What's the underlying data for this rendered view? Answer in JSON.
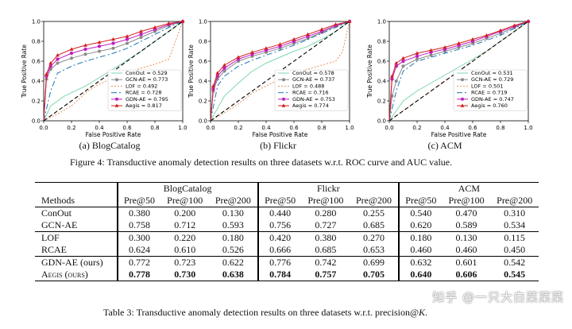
{
  "figure": {
    "caption": "Figure 4: Transductive anomaly detection results on three datasets w.r.t. ROC curve and AUC value.",
    "xlabel": "False Positive Rate",
    "ylabel": "True Positive Rate",
    "ticks": [
      "0.0",
      "0.2",
      "0.4",
      "0.6",
      "0.8",
      "1.0"
    ]
  },
  "chart_data": [
    {
      "type": "line",
      "subcaption": "(a) BlogCatalog",
      "xlabel": "False Positive Rate",
      "ylabel": "True Positive Rate",
      "xlim": [
        0,
        1
      ],
      "ylim": [
        0,
        1
      ],
      "grid": false,
      "legend": "bottom-right",
      "series": [
        {
          "name": "ConOut = 0.529",
          "color": "#7fd6b0",
          "x": [
            0,
            0.05,
            0.15,
            0.3,
            0.5,
            0.7,
            0.85,
            1.0
          ],
          "y": [
            0,
            0.15,
            0.25,
            0.35,
            0.52,
            0.7,
            0.85,
            1.0
          ]
        },
        {
          "name": "GCN-AE = 0.773",
          "color": "#8a8a8a",
          "x": [
            0,
            0.02,
            0.05,
            0.1,
            0.2,
            0.3,
            0.4,
            0.5,
            0.6,
            0.7,
            0.8,
            0.9,
            1.0
          ],
          "y": [
            0,
            0.42,
            0.52,
            0.58,
            0.63,
            0.67,
            0.7,
            0.73,
            0.78,
            0.84,
            0.9,
            0.96,
            1.0
          ]
        },
        {
          "name": "LOF = 0.492",
          "color": "#e9905a",
          "x": [
            0,
            0.1,
            0.2,
            0.3,
            0.4,
            0.5,
            0.6,
            0.7,
            0.8,
            0.9,
            1.0
          ],
          "y": [
            0,
            0.07,
            0.15,
            0.28,
            0.37,
            0.43,
            0.48,
            0.53,
            0.57,
            0.62,
            1.0
          ]
        },
        {
          "name": "RCAE = 0.728",
          "color": "#1f77b4",
          "x": [
            0,
            0.05,
            0.1,
            0.2,
            0.3,
            0.4,
            0.5,
            0.6,
            0.7,
            0.8,
            0.9,
            1.0
          ],
          "y": [
            0,
            0.3,
            0.48,
            0.55,
            0.6,
            0.64,
            0.68,
            0.73,
            0.8,
            0.87,
            0.94,
            1.0
          ]
        },
        {
          "name": "GDN-AE = 0.795",
          "color": "#c020c0",
          "x": [
            0,
            0.02,
            0.05,
            0.1,
            0.2,
            0.3,
            0.4,
            0.5,
            0.6,
            0.7,
            0.8,
            0.9,
            1.0
          ],
          "y": [
            0,
            0.45,
            0.55,
            0.62,
            0.68,
            0.72,
            0.75,
            0.78,
            0.82,
            0.87,
            0.92,
            0.97,
            1.0
          ]
        },
        {
          "name": "Aegis = 0.817",
          "color": "#d42020",
          "x": [
            0,
            0.02,
            0.05,
            0.1,
            0.2,
            0.3,
            0.4,
            0.5,
            0.6,
            0.7,
            0.8,
            0.9,
            1.0
          ],
          "y": [
            0,
            0.47,
            0.58,
            0.66,
            0.72,
            0.76,
            0.79,
            0.82,
            0.85,
            0.9,
            0.94,
            0.98,
            1.0
          ]
        },
        {
          "name": "",
          "color": "#000000",
          "x": [
            0,
            1
          ],
          "y": [
            0,
            1
          ]
        }
      ]
    },
    {
      "type": "line",
      "subcaption": "(b) Flickr",
      "xlabel": "False Positive Rate",
      "ylabel": "True Positive Rate",
      "xlim": [
        0,
        1
      ],
      "ylim": [
        0,
        1
      ],
      "grid": false,
      "legend": "bottom-right",
      "series": [
        {
          "name": "ConOut = 0.578",
          "color": "#7fd6b0",
          "x": [
            0,
            0.1,
            0.2,
            0.3,
            0.4,
            0.5,
            0.6,
            0.7,
            0.8,
            0.9,
            1.0
          ],
          "y": [
            0,
            0.25,
            0.38,
            0.5,
            0.58,
            0.64,
            0.7,
            0.75,
            0.82,
            0.9,
            1.0
          ]
        },
        {
          "name": "GCN-AE = 0.737",
          "color": "#8a8a8a",
          "x": [
            0,
            0.02,
            0.05,
            0.1,
            0.2,
            0.3,
            0.4,
            0.5,
            0.6,
            0.7,
            0.8,
            0.9,
            1.0
          ],
          "y": [
            0,
            0.3,
            0.42,
            0.5,
            0.6,
            0.65,
            0.69,
            0.73,
            0.78,
            0.83,
            0.89,
            0.95,
            1.0
          ]
        },
        {
          "name": "LOF = 0.488",
          "color": "#e9905a",
          "x": [
            0,
            0.1,
            0.2,
            0.3,
            0.4,
            0.5,
            0.6,
            0.7,
            0.8,
            0.9,
            0.95,
            1.0
          ],
          "y": [
            0,
            0.08,
            0.17,
            0.28,
            0.35,
            0.42,
            0.48,
            0.52,
            0.56,
            0.6,
            0.7,
            1.0
          ]
        },
        {
          "name": "RCAE = 0.716",
          "color": "#1f77b4",
          "x": [
            0,
            0.05,
            0.1,
            0.2,
            0.3,
            0.4,
            0.5,
            0.6,
            0.7,
            0.8,
            0.9,
            1.0
          ],
          "y": [
            0,
            0.35,
            0.45,
            0.55,
            0.61,
            0.66,
            0.71,
            0.76,
            0.82,
            0.88,
            0.94,
            1.0
          ]
        },
        {
          "name": "GDN-AE = 0.753",
          "color": "#c020c0",
          "x": [
            0,
            0.02,
            0.05,
            0.1,
            0.2,
            0.3,
            0.4,
            0.5,
            0.6,
            0.7,
            0.8,
            0.9,
            1.0
          ],
          "y": [
            0,
            0.32,
            0.45,
            0.53,
            0.62,
            0.67,
            0.71,
            0.75,
            0.8,
            0.85,
            0.9,
            0.96,
            1.0
          ]
        },
        {
          "name": "Aegis = 0.774",
          "color": "#d42020",
          "x": [
            0,
            0.02,
            0.05,
            0.1,
            0.2,
            0.3,
            0.4,
            0.5,
            0.6,
            0.7,
            0.8,
            0.9,
            1.0
          ],
          "y": [
            0,
            0.35,
            0.48,
            0.56,
            0.64,
            0.69,
            0.73,
            0.77,
            0.82,
            0.87,
            0.92,
            0.97,
            1.0
          ]
        },
        {
          "name": "",
          "color": "#000000",
          "x": [
            0,
            1
          ],
          "y": [
            0,
            1
          ]
        }
      ]
    },
    {
      "type": "line",
      "subcaption": "(c) ACM",
      "xlabel": "False Positive Rate",
      "ylabel": "True Positive Rate",
      "xlim": [
        0,
        1
      ],
      "ylim": [
        0,
        1
      ],
      "grid": false,
      "legend": "bottom-right",
      "series": [
        {
          "name": "ConOut = 0.531",
          "color": "#7fd6b0",
          "x": [
            0,
            0.1,
            0.2,
            0.3,
            0.4,
            0.5,
            0.6,
            0.7,
            0.8,
            0.9,
            1.0
          ],
          "y": [
            0,
            0.2,
            0.3,
            0.38,
            0.46,
            0.54,
            0.62,
            0.7,
            0.8,
            0.9,
            1.0
          ]
        },
        {
          "name": "GCN-AE = 0.729",
          "color": "#8a8a8a",
          "x": [
            0,
            0.02,
            0.05,
            0.1,
            0.2,
            0.3,
            0.4,
            0.5,
            0.6,
            0.7,
            0.8,
            0.9,
            1.0
          ],
          "y": [
            0,
            0.25,
            0.4,
            0.55,
            0.62,
            0.66,
            0.7,
            0.74,
            0.78,
            0.83,
            0.88,
            0.94,
            1.0
          ]
        },
        {
          "name": "LOF = 0.501",
          "color": "#e9905a",
          "x": [
            0,
            0.1,
            0.2,
            0.3,
            0.4,
            0.5,
            0.6,
            0.7,
            0.8,
            0.9,
            1.0
          ],
          "y": [
            0,
            0.1,
            0.2,
            0.3,
            0.4,
            0.5,
            0.6,
            0.7,
            0.8,
            0.9,
            1.0
          ]
        },
        {
          "name": "RCAE = 0.719",
          "color": "#1f77b4",
          "x": [
            0,
            0.05,
            0.1,
            0.2,
            0.3,
            0.4,
            0.5,
            0.6,
            0.7,
            0.8,
            0.9,
            1.0
          ],
          "y": [
            0,
            0.3,
            0.5,
            0.6,
            0.64,
            0.68,
            0.72,
            0.76,
            0.81,
            0.86,
            0.93,
            1.0
          ]
        },
        {
          "name": "GDN-AE = 0.747",
          "color": "#c020c0",
          "x": [
            0,
            0.02,
            0.05,
            0.1,
            0.2,
            0.3,
            0.4,
            0.5,
            0.6,
            0.7,
            0.8,
            0.9,
            1.0
          ],
          "y": [
            0,
            0.42,
            0.55,
            0.6,
            0.65,
            0.69,
            0.72,
            0.76,
            0.8,
            0.85,
            0.9,
            0.95,
            1.0
          ]
        },
        {
          "name": "Aegis = 0.760",
          "color": "#d42020",
          "x": [
            0,
            0.02,
            0.05,
            0.1,
            0.2,
            0.3,
            0.4,
            0.5,
            0.6,
            0.7,
            0.8,
            0.9,
            1.0
          ],
          "y": [
            0,
            0.45,
            0.58,
            0.63,
            0.68,
            0.71,
            0.74,
            0.78,
            0.82,
            0.86,
            0.91,
            0.96,
            1.0
          ]
        },
        {
          "name": "",
          "color": "#000000",
          "x": [
            0,
            1
          ],
          "y": [
            0,
            1
          ]
        }
      ]
    }
  ],
  "table": {
    "caption_prefix": "Table 3: Transductive anomaly detection results on three datasets w.r.t. precision@",
    "caption_var": "K",
    "caption_suffix": ".",
    "methods_header": "Methods",
    "datasets": [
      "BlogCatalog",
      "Flickr",
      "ACM"
    ],
    "metrics": [
      "Pre@50",
      "Pre@100",
      "Pre@200",
      "Pre@50",
      "Pre@100",
      "Pre@200",
      "Pre@50",
      "Pre@100",
      "Pre@200"
    ],
    "rows": [
      {
        "method": "ConOut",
        "values": [
          "0.380",
          "0.200",
          "0.130",
          "0.440",
          "0.280",
          "0.255",
          "0.540",
          "0.470",
          "0.310"
        ]
      },
      {
        "method": "GCN-AE",
        "values": [
          "0.758",
          "0.712",
          "0.593",
          "0.756",
          "0.727",
          "0.685",
          "0.620",
          "0.589",
          "0.534"
        ]
      },
      {
        "method": "LOF",
        "values": [
          "0.300",
          "0.220",
          "0.180",
          "0.420",
          "0.380",
          "0.270",
          "0.180",
          "0.130",
          "0.115"
        ]
      },
      {
        "method": "RCAE",
        "values": [
          "0.624",
          "0.610",
          "0.526",
          "0.666",
          "0.685",
          "0.653",
          "0.460",
          "0.460",
          "0.450"
        ]
      },
      {
        "method": "GDN-AE (ours)",
        "values": [
          "0.772",
          "0.723",
          "0.622",
          "0.776",
          "0.742",
          "0.699",
          "0.632",
          "0.601",
          "0.542"
        ]
      },
      {
        "method": "Aegis (ours)",
        "values": [
          "0.778",
          "0.730",
          "0.638",
          "0.784",
          "0.757",
          "0.705",
          "0.640",
          "0.606",
          "0.545"
        ]
      }
    ]
  },
  "watermark": "知乎 @一只大白菜菜菜"
}
